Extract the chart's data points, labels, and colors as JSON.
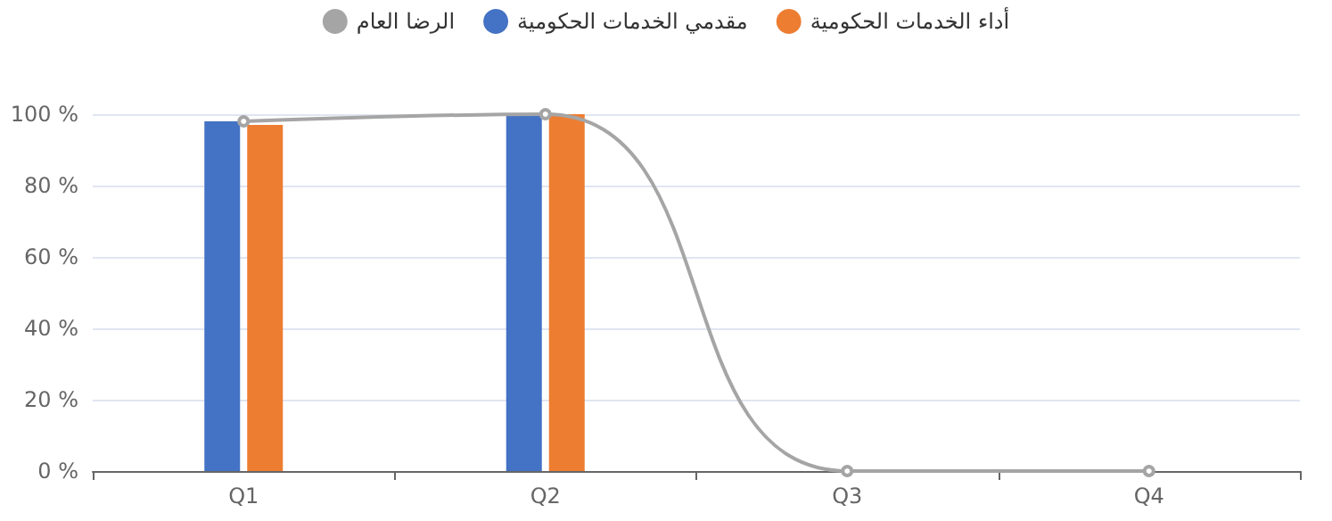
{
  "chart_data": {
    "type": "bar",
    "categories": [
      "Q1",
      "Q2",
      "Q3",
      "Q4"
    ],
    "series": [
      {
        "name": "مقدمي الخدمات الحكومية",
        "color": "#4472c4",
        "values": [
          98,
          100,
          null,
          null
        ]
      },
      {
        "name": "أداء الخدمات الحكومية",
        "color": "#ed7d31",
        "values": [
          97,
          100,
          null,
          null
        ]
      },
      {
        "name": "الرضا العام",
        "type": "line",
        "color": "#a5a5a5",
        "values": [
          98,
          100,
          0,
          0
        ]
      }
    ],
    "ylim": [
      0,
      100
    ],
    "yticks": [
      {
        "value": 0,
        "label": "0 %"
      },
      {
        "value": 20,
        "label": "20 %"
      },
      {
        "value": 40,
        "label": "40 %"
      },
      {
        "value": 60,
        "label": "60 %"
      },
      {
        "value": 80,
        "label": "80 %"
      },
      {
        "value": 100,
        "label": "100 %"
      }
    ],
    "grid": "y",
    "legend": "top",
    "marker": "circle",
    "line_style": "solid"
  }
}
